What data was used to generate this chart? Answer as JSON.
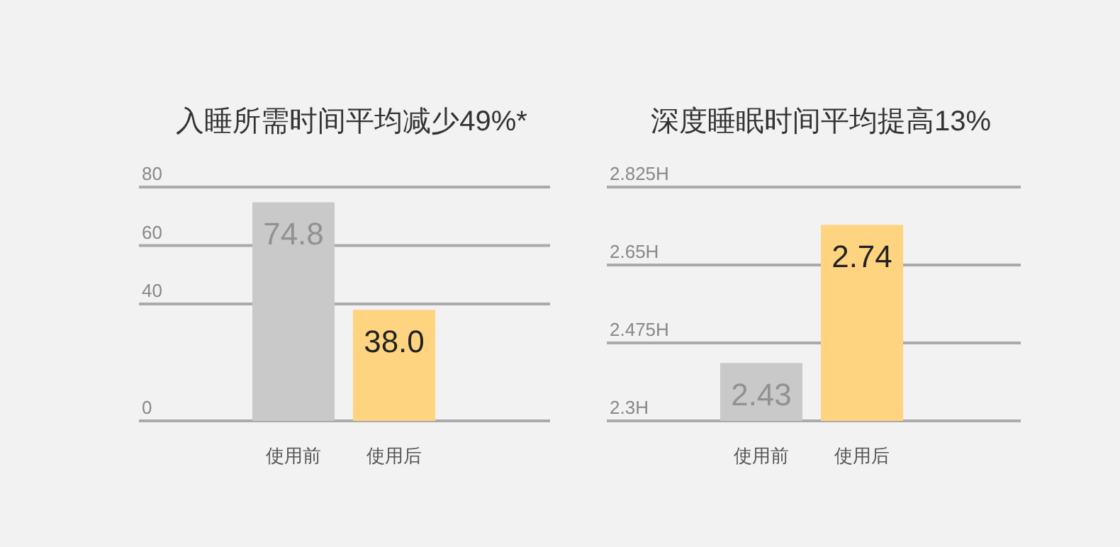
{
  "chart_data": [
    {
      "type": "bar",
      "title": "入睡所需时间平均减少49%*",
      "categories": [
        "使用前",
        "使用后"
      ],
      "values": [
        74.8,
        38.0
      ],
      "colors": [
        "#c9c9c9",
        "#ffd480"
      ],
      "value_labels": [
        "74.8",
        "38.0"
      ],
      "ylim": [
        0,
        80
      ],
      "yticks": [
        0,
        40,
        60,
        80
      ],
      "grid": "y"
    },
    {
      "type": "bar",
      "title": "深度睡眠时间平均提高13%",
      "categories": [
        "使用前",
        "使用后"
      ],
      "values": [
        2.43,
        2.74
      ],
      "colors": [
        "#c9c9c9",
        "#ffd480"
      ],
      "value_labels": [
        "2.43",
        "2.74"
      ],
      "ylim": [
        2.3,
        2.825
      ],
      "yticks": [
        {
          "value": 2.3,
          "label": "2.3H"
        },
        {
          "value": 2.475,
          "label": "2.475H"
        },
        {
          "value": 2.65,
          "label": "2.65H"
        },
        {
          "value": 2.825,
          "label": "2.825H"
        }
      ],
      "grid": "y"
    }
  ]
}
